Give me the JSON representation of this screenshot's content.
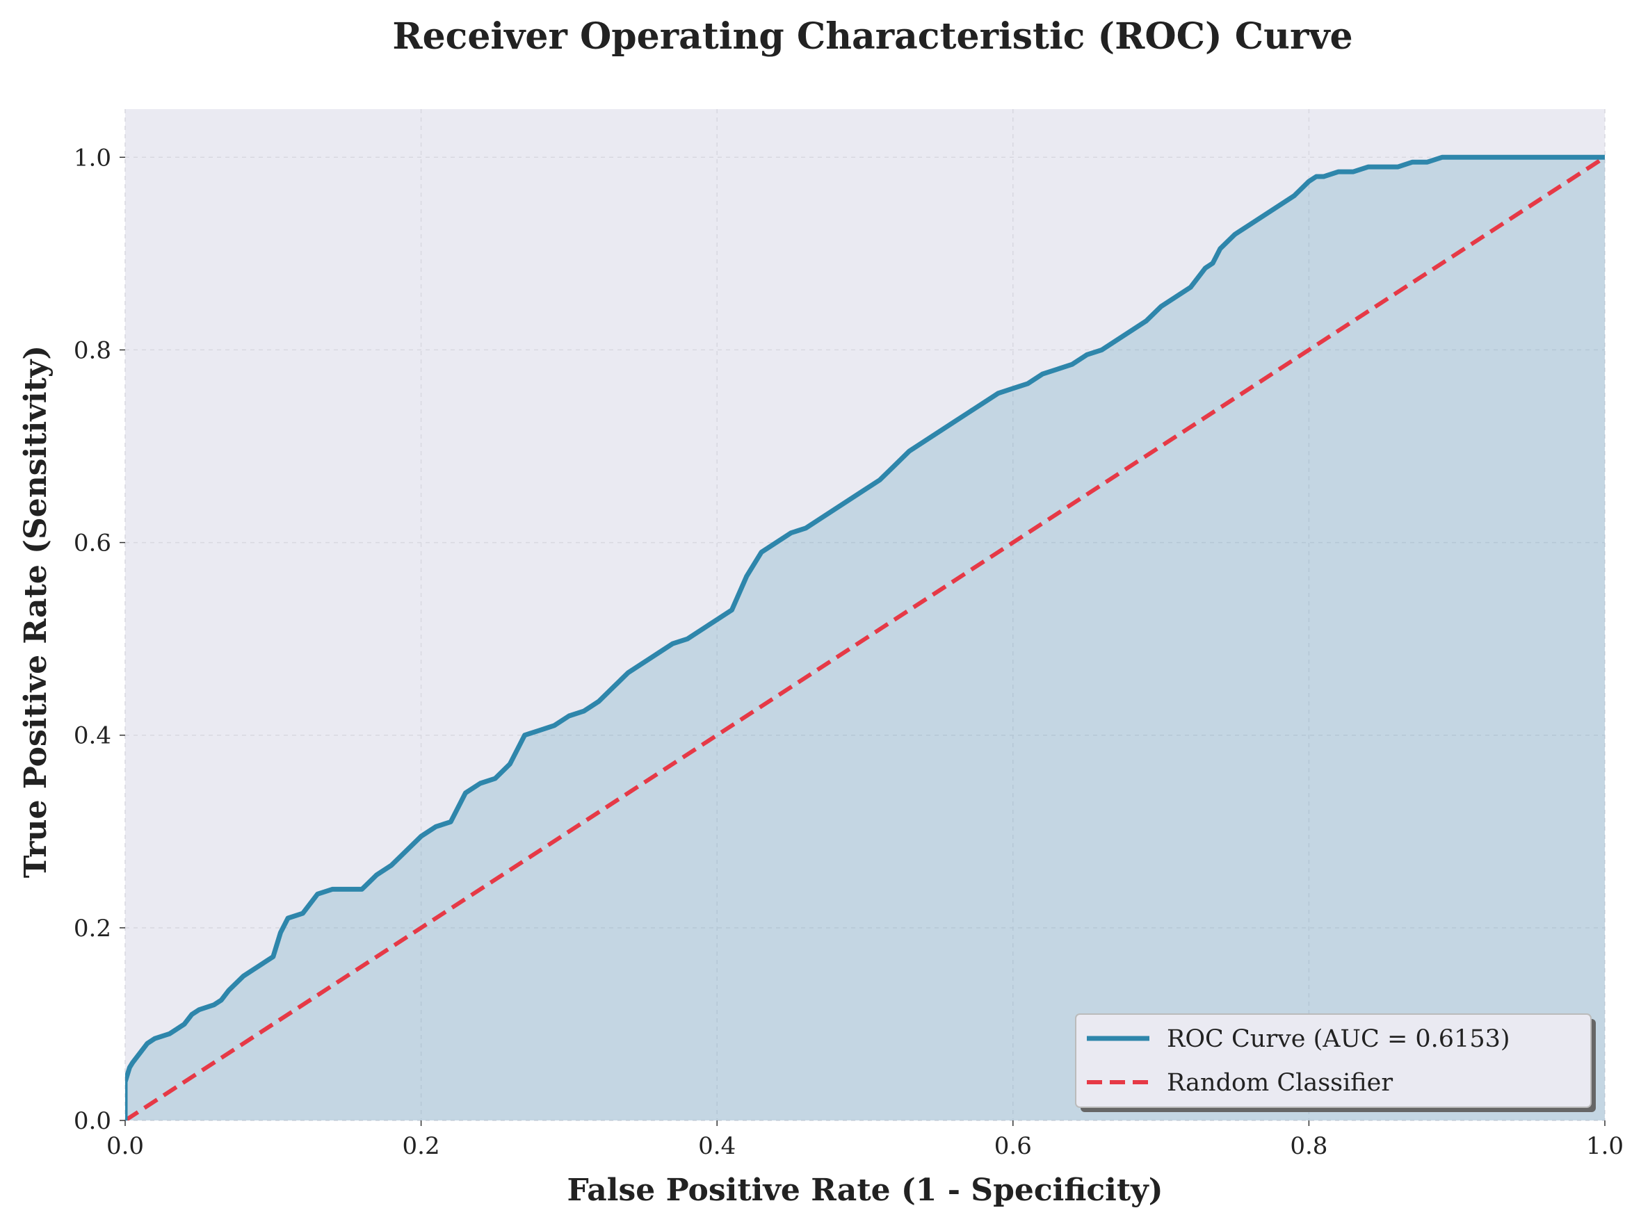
{
  "chart_data": {
    "type": "line",
    "title": "Receiver Operating Characteristic (ROC) Curve",
    "xlabel": "False Positive Rate (1 - Specificity)",
    "ylabel": "True Positive Rate (Sensitivity)",
    "xlim": [
      0.0,
      1.0
    ],
    "ylim": [
      0.0,
      1.05
    ],
    "xticks": [
      0.0,
      0.2,
      0.4,
      0.6,
      0.8,
      1.0
    ],
    "yticks": [
      0.0,
      0.2,
      0.4,
      0.6,
      0.8,
      1.0
    ],
    "xtick_labels": [
      "0.0",
      "0.2",
      "0.4",
      "0.6",
      "0.8",
      "1.0"
    ],
    "ytick_labels": [
      "0.0",
      "0.2",
      "0.4",
      "0.6",
      "0.8",
      "1.0"
    ],
    "grid": true,
    "legend_position": "lower-right",
    "series": [
      {
        "name": "ROC Curve (AUC = 0.6153)",
        "color": "#2e86ab",
        "style": "solid",
        "filled": true,
        "x": [
          0.0,
          0.0,
          0.003,
          0.005,
          0.01,
          0.015,
          0.02,
          0.03,
          0.04,
          0.045,
          0.05,
          0.06,
          0.065,
          0.07,
          0.08,
          0.09,
          0.1,
          0.105,
          0.11,
          0.12,
          0.13,
          0.14,
          0.16,
          0.17,
          0.18,
          0.19,
          0.2,
          0.21,
          0.22,
          0.23,
          0.24,
          0.25,
          0.26,
          0.27,
          0.28,
          0.29,
          0.3,
          0.31,
          0.32,
          0.33,
          0.34,
          0.35,
          0.36,
          0.37,
          0.38,
          0.39,
          0.4,
          0.41,
          0.42,
          0.43,
          0.44,
          0.45,
          0.46,
          0.47,
          0.48,
          0.49,
          0.5,
          0.51,
          0.52,
          0.53,
          0.54,
          0.55,
          0.56,
          0.57,
          0.58,
          0.59,
          0.6,
          0.61,
          0.62,
          0.63,
          0.64,
          0.65,
          0.66,
          0.67,
          0.68,
          0.69,
          0.7,
          0.71,
          0.72,
          0.73,
          0.735,
          0.74,
          0.75,
          0.76,
          0.77,
          0.78,
          0.79,
          0.8,
          0.805,
          0.81,
          0.82,
          0.83,
          0.84,
          0.85,
          0.86,
          0.87,
          0.88,
          0.89,
          0.9,
          0.91,
          0.95,
          1.0
        ],
        "y": [
          0.0,
          0.04,
          0.055,
          0.06,
          0.07,
          0.08,
          0.085,
          0.09,
          0.1,
          0.11,
          0.115,
          0.12,
          0.125,
          0.135,
          0.15,
          0.16,
          0.17,
          0.195,
          0.21,
          0.215,
          0.235,
          0.24,
          0.24,
          0.255,
          0.265,
          0.28,
          0.295,
          0.305,
          0.31,
          0.34,
          0.35,
          0.355,
          0.37,
          0.4,
          0.405,
          0.41,
          0.42,
          0.425,
          0.435,
          0.45,
          0.465,
          0.475,
          0.485,
          0.495,
          0.5,
          0.51,
          0.52,
          0.53,
          0.565,
          0.59,
          0.6,
          0.61,
          0.615,
          0.625,
          0.635,
          0.645,
          0.655,
          0.665,
          0.68,
          0.695,
          0.705,
          0.715,
          0.725,
          0.735,
          0.745,
          0.755,
          0.76,
          0.765,
          0.775,
          0.78,
          0.785,
          0.795,
          0.8,
          0.81,
          0.82,
          0.83,
          0.845,
          0.855,
          0.865,
          0.885,
          0.89,
          0.905,
          0.92,
          0.93,
          0.94,
          0.95,
          0.96,
          0.975,
          0.98,
          0.98,
          0.985,
          0.985,
          0.99,
          0.99,
          0.99,
          0.995,
          0.995,
          1.0,
          1.0,
          1.0,
          1.0,
          1.0
        ]
      },
      {
        "name": "Random Classifier",
        "color": "#e63946",
        "style": "dashed",
        "x": [
          0.0,
          1.0
        ],
        "y": [
          0.0,
          1.0
        ]
      }
    ]
  }
}
